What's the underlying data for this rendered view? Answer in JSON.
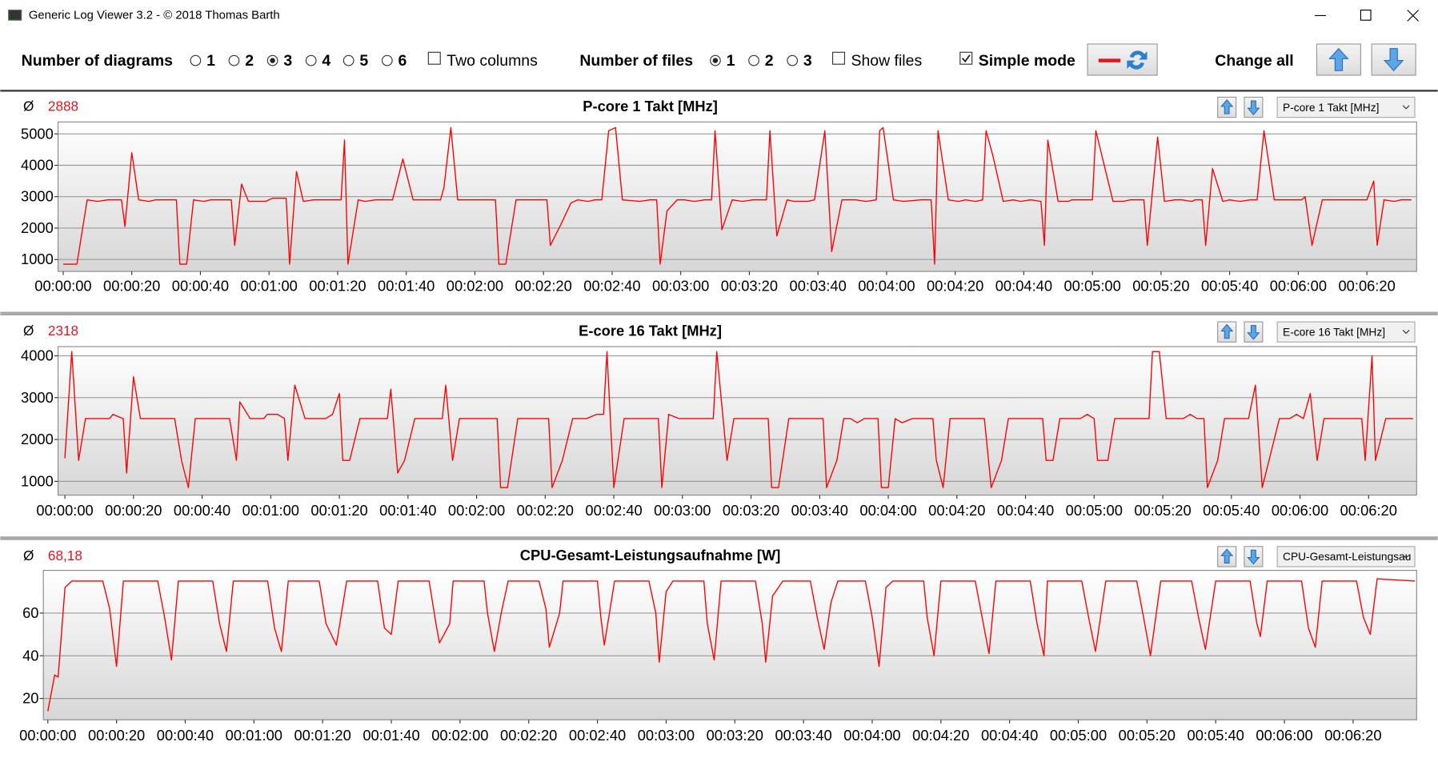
{
  "window": {
    "title": "Generic Log Viewer 3.2 - © 2018 Thomas Barth"
  },
  "toolbar": {
    "diagrams_label": "Number of diagrams",
    "diagram_options": [
      "1",
      "2",
      "3",
      "4",
      "5",
      "6"
    ],
    "diagrams_selected": "3",
    "two_columns": {
      "label": "Two columns",
      "checked": false
    },
    "files_label": "Number of files",
    "file_options": [
      "1",
      "2",
      "3"
    ],
    "files_selected": "1",
    "show_files": {
      "label": "Show files",
      "checked": false
    },
    "simple_mode": {
      "label": "Simple mode",
      "checked": true
    },
    "change_all": "Change all"
  },
  "chart_data": [
    {
      "type": "line",
      "title": "P-core 1 Takt [MHz]",
      "avg_symbol": "Ø",
      "avg": "2888",
      "dropdown": "P-core 1 Takt [MHz]",
      "color": "#ff0000",
      "grid": true,
      "xlim": [
        -1.5,
        394.5
      ],
      "ylim": [
        620,
        5380
      ],
      "yticks": [
        1000,
        2000,
        3000,
        4000,
        5000
      ],
      "xticks": [
        {
          "value": 0,
          "label": "00:00:00"
        },
        {
          "value": 20,
          "label": "00:00:20"
        },
        {
          "value": 40,
          "label": "00:00:40"
        },
        {
          "value": 60,
          "label": "00:01:00"
        },
        {
          "value": 80,
          "label": "00:01:20"
        },
        {
          "value": 100,
          "label": "00:01:40"
        },
        {
          "value": 120,
          "label": "00:02:00"
        },
        {
          "value": 140,
          "label": "00:02:20"
        },
        {
          "value": 160,
          "label": "00:02:40"
        },
        {
          "value": 180,
          "label": "00:03:00"
        },
        {
          "value": 200,
          "label": "00:03:20"
        },
        {
          "value": 220,
          "label": "00:03:40"
        },
        {
          "value": 240,
          "label": "00:04:00"
        },
        {
          "value": 260,
          "label": "00:04:20"
        },
        {
          "value": 280,
          "label": "00:04:40"
        },
        {
          "value": 300,
          "label": "00:05:00"
        },
        {
          "value": 320,
          "label": "00:05:20"
        },
        {
          "value": 340,
          "label": "00:05:40"
        },
        {
          "value": 360,
          "label": "00:06:00"
        },
        {
          "value": 380,
          "label": "00:06:20"
        }
      ],
      "x": [
        0,
        4,
        7,
        10,
        13,
        17,
        18,
        20,
        22,
        25,
        27,
        33,
        34,
        36,
        38,
        41,
        43,
        49,
        50,
        52,
        54,
        59,
        61,
        65,
        66,
        68,
        70,
        73,
        81,
        82,
        83,
        86,
        88,
        91,
        96,
        99,
        102,
        110,
        111,
        113,
        115,
        126,
        127,
        129,
        132,
        141,
        142,
        145,
        148,
        150,
        153,
        155,
        157,
        159,
        161,
        163,
        168,
        171,
        173,
        174,
        176,
        179,
        181,
        184,
        187,
        189,
        190,
        192,
        195,
        198,
        201,
        205,
        206,
        208,
        211,
        213,
        217,
        219,
        222,
        224,
        227,
        231,
        234,
        237,
        238,
        239,
        242,
        245,
        250,
        253,
        254,
        255,
        258,
        261,
        263,
        266,
        268,
        269,
        271,
        274,
        277,
        279,
        282,
        285,
        286,
        287,
        290,
        293,
        294,
        300,
        301,
        303,
        306,
        309,
        311,
        315,
        316,
        319,
        321,
        324,
        326,
        329,
        330,
        332,
        333,
        335,
        338,
        340,
        343,
        346,
        348,
        350,
        353,
        361,
        362,
        364,
        367,
        380,
        382,
        383,
        385,
        388,
        390,
        393
      ],
      "values": [
        850,
        850,
        2900,
        2850,
        2900,
        2900,
        2050,
        4400,
        2900,
        2850,
        2900,
        2900,
        850,
        850,
        2900,
        2850,
        2900,
        2900,
        1450,
        3400,
        2850,
        2850,
        2950,
        2950,
        850,
        3800,
        2850,
        2900,
        2900,
        4800,
        850,
        2900,
        2850,
        2900,
        2900,
        4200,
        2900,
        2900,
        3300,
        5200,
        2900,
        2900,
        850,
        850,
        2900,
        2900,
        1450,
        2100,
        2800,
        2900,
        2850,
        2900,
        2900,
        5100,
        5200,
        2900,
        2850,
        2900,
        2900,
        850,
        2550,
        2900,
        2900,
        2850,
        2900,
        2900,
        5100,
        1950,
        2900,
        2850,
        2900,
        2900,
        5100,
        1750,
        2900,
        2850,
        2850,
        2900,
        5100,
        1250,
        2900,
        2900,
        2850,
        2900,
        5100,
        5200,
        2900,
        2850,
        2900,
        2900,
        850,
        5100,
        2900,
        2850,
        2900,
        2850,
        2900,
        5100,
        4300,
        2850,
        2900,
        2850,
        2900,
        2850,
        1450,
        4800,
        2850,
        2850,
        2900,
        2900,
        5100,
        4200,
        2850,
        2850,
        2900,
        2900,
        1450,
        4900,
        2850,
        2900,
        2900,
        2850,
        2900,
        2900,
        1450,
        3900,
        2850,
        2900,
        2850,
        2900,
        2900,
        5100,
        2900,
        2900,
        3000,
        1450,
        2900,
        2900,
        3500,
        1450,
        2900,
        2850,
        2900,
        2900
      ]
    },
    {
      "type": "line",
      "title": "E-core 16 Takt [MHz]",
      "avg_symbol": "Ø",
      "avg": "2318",
      "dropdown": "E-core 16 Takt [MHz]",
      "color": "#ff0000",
      "grid": true,
      "xlim": [
        -2,
        394
      ],
      "ylim": [
        670,
        4220
      ],
      "yticks": [
        1000,
        2000,
        3000,
        4000
      ],
      "xticks": [
        {
          "value": 0,
          "label": "00:00:00"
        },
        {
          "value": 20,
          "label": "00:00:20"
        },
        {
          "value": 40,
          "label": "00:00:40"
        },
        {
          "value": 60,
          "label": "00:01:00"
        },
        {
          "value": 80,
          "label": "00:01:20"
        },
        {
          "value": 100,
          "label": "00:01:40"
        },
        {
          "value": 120,
          "label": "00:02:00"
        },
        {
          "value": 140,
          "label": "00:02:20"
        },
        {
          "value": 160,
          "label": "00:02:40"
        },
        {
          "value": 180,
          "label": "00:03:00"
        },
        {
          "value": 200,
          "label": "00:03:20"
        },
        {
          "value": 220,
          "label": "00:03:40"
        },
        {
          "value": 240,
          "label": "00:04:00"
        },
        {
          "value": 260,
          "label": "00:04:20"
        },
        {
          "value": 280,
          "label": "00:04:40"
        },
        {
          "value": 300,
          "label": "00:05:00"
        },
        {
          "value": 320,
          "label": "00:05:20"
        },
        {
          "value": 340,
          "label": "00:05:40"
        },
        {
          "value": 360,
          "label": "00:06:00"
        },
        {
          "value": 380,
          "label": "00:06:20"
        }
      ],
      "x": [
        0,
        2,
        4,
        6,
        13,
        14,
        17,
        18,
        20,
        22,
        32,
        34,
        36,
        38,
        48,
        50,
        51,
        54,
        58,
        59,
        62,
        64,
        65,
        67,
        70,
        76,
        78,
        80,
        81,
        83,
        86,
        94,
        95,
        97,
        99,
        102,
        110,
        111,
        113,
        115,
        126,
        127,
        129,
        132,
        141,
        142,
        145,
        148,
        152,
        155,
        157,
        158,
        160,
        163,
        173,
        174,
        176,
        179,
        189,
        190,
        193,
        195,
        205,
        206,
        208,
        211,
        221,
        222,
        225,
        227,
        229,
        231,
        233,
        237,
        238,
        240,
        242,
        244,
        247,
        253,
        254,
        256,
        258,
        268,
        270,
        273,
        275,
        285,
        286,
        288,
        290,
        296,
        298,
        300,
        301,
        304,
        306,
        316,
        317,
        319,
        321,
        326,
        328,
        330,
        332,
        333,
        336,
        338,
        345,
        347,
        349,
        354,
        357,
        359,
        361,
        363,
        365,
        367,
        378,
        379,
        381,
        382,
        385,
        393
      ],
      "values": [
        1550,
        4100,
        1500,
        2500,
        2500,
        2600,
        2500,
        1200,
        3500,
        2500,
        2500,
        1500,
        850,
        2500,
        2500,
        1500,
        2900,
        2500,
        2500,
        2600,
        2600,
        2500,
        1500,
        3300,
        2500,
        2500,
        2600,
        3100,
        1500,
        1500,
        2500,
        2500,
        3200,
        1200,
        1500,
        2500,
        2500,
        3300,
        1500,
        2500,
        2500,
        850,
        850,
        2500,
        2500,
        850,
        1500,
        2500,
        2500,
        2600,
        2600,
        4100,
        850,
        2500,
        2500,
        850,
        2600,
        2500,
        2500,
        4100,
        1500,
        2500,
        2500,
        850,
        850,
        2500,
        2500,
        850,
        1500,
        2500,
        2500,
        2400,
        2500,
        2500,
        850,
        850,
        2500,
        2400,
        2500,
        2500,
        1500,
        850,
        2500,
        2500,
        850,
        1500,
        2500,
        2500,
        1500,
        1500,
        2500,
        2500,
        2600,
        2500,
        1500,
        1500,
        2500,
        2500,
        4100,
        4100,
        2500,
        2500,
        2600,
        2500,
        2500,
        850,
        1500,
        2500,
        2500,
        3300,
        850,
        2500,
        2500,
        2600,
        2500,
        3100,
        1500,
        2500,
        2500,
        1500,
        4000,
        1500,
        2500,
        2500
      ]
    },
    {
      "type": "line",
      "title": "CPU-Gesamt-Leistungsaufnahme [W]",
      "avg_symbol": "Ø",
      "avg": "68,18",
      "dropdown": "CPU-Gesamt-Leistungsau",
      "color": "#ff0000",
      "grid": true,
      "xlim": [
        -1.3,
        398.5
      ],
      "ylim": [
        10,
        80
      ],
      "yticks": [
        20,
        40,
        60
      ],
      "xticks": [
        {
          "value": 0,
          "label": "00:00:00"
        },
        {
          "value": 20,
          "label": "00:00:20"
        },
        {
          "value": 40,
          "label": "00:00:40"
        },
        {
          "value": 60,
          "label": "00:01:00"
        },
        {
          "value": 80,
          "label": "00:01:20"
        },
        {
          "value": 100,
          "label": "00:01:40"
        },
        {
          "value": 120,
          "label": "00:02:00"
        },
        {
          "value": 140,
          "label": "00:02:20"
        },
        {
          "value": 160,
          "label": "00:02:40"
        },
        {
          "value": 180,
          "label": "00:03:00"
        },
        {
          "value": 200,
          "label": "00:03:20"
        },
        {
          "value": 220,
          "label": "00:03:40"
        },
        {
          "value": 240,
          "label": "00:04:00"
        },
        {
          "value": 260,
          "label": "00:04:20"
        },
        {
          "value": 280,
          "label": "00:04:40"
        },
        {
          "value": 300,
          "label": "00:05:00"
        },
        {
          "value": 320,
          "label": "00:05:20"
        },
        {
          "value": 340,
          "label": "00:05:40"
        },
        {
          "value": 360,
          "label": "00:06:00"
        },
        {
          "value": 380,
          "label": "00:06:20"
        }
      ],
      "x": [
        0,
        2,
        3,
        5,
        7,
        16,
        18,
        20,
        22,
        32,
        34,
        36,
        38,
        48,
        50,
        52,
        54,
        64,
        66,
        68,
        70,
        79,
        81,
        84,
        87,
        96,
        98,
        100,
        102,
        111,
        113,
        114,
        117,
        118,
        127,
        128,
        130,
        132,
        134,
        143,
        145,
        146,
        149,
        150,
        160,
        161,
        162,
        165,
        175,
        177,
        178,
        180,
        182,
        191,
        192,
        194,
        196,
        206,
        208,
        209,
        211,
        214,
        222,
        224,
        226,
        228,
        230,
        238,
        240,
        242,
        244,
        246,
        255,
        256,
        258,
        260,
        270,
        272,
        274,
        276,
        286,
        288,
        290,
        291,
        301,
        303,
        305,
        308,
        317,
        319,
        321,
        324,
        333,
        335,
        337,
        340,
        350,
        352,
        353,
        355,
        365,
        367,
        369,
        371,
        381,
        383,
        385,
        387,
        398
      ],
      "values": [
        14,
        31,
        30,
        72,
        75,
        75,
        62,
        35,
        75,
        75,
        58,
        38,
        75,
        75,
        55,
        42,
        75,
        75,
        53,
        42,
        75,
        75,
        55,
        45,
        75,
        75,
        53,
        50,
        75,
        75,
        55,
        46,
        55,
        75,
        75,
        60,
        42,
        60,
        75,
        75,
        62,
        44,
        60,
        75,
        75,
        58,
        45,
        75,
        75,
        60,
        37,
        70,
        75,
        75,
        55,
        38,
        75,
        75,
        55,
        37,
        68,
        75,
        75,
        58,
        43,
        65,
        75,
        75,
        58,
        35,
        72,
        75,
        75,
        58,
        40,
        75,
        75,
        58,
        41,
        75,
        75,
        55,
        40,
        75,
        75,
        58,
        42,
        75,
        75,
        58,
        40,
        75,
        75,
        58,
        43,
        75,
        75,
        55,
        49,
        75,
        75,
        53,
        44,
        75,
        75,
        58,
        50,
        76,
        75
      ]
    }
  ]
}
